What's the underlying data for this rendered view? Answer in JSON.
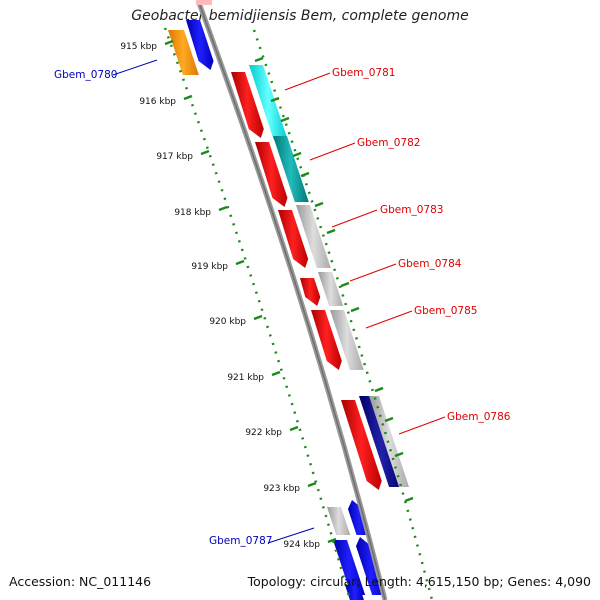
{
  "title": "Geobacter bemidjiensis Bem, complete genome",
  "accession": "Accession: NC_011146",
  "topology": "Topology: circular; Length: 4,615,150 bp; Genes: 4,090",
  "kbp_labels": [
    "915 kbp",
    "916 kbp",
    "917 kbp",
    "918 kbp",
    "919 kbp",
    "920 kbp",
    "921 kbp",
    "922 kbp",
    "923 kbp",
    "924 kbp"
  ],
  "genes": [
    {
      "id": "Gbem_0780",
      "color": "#0000bb"
    },
    {
      "id": "Gbem_0781",
      "color": "#dd0000"
    },
    {
      "id": "Gbem_0782",
      "color": "#dd0000"
    },
    {
      "id": "Gbem_0783",
      "color": "#dd0000"
    },
    {
      "id": "Gbem_0784",
      "color": "#dd0000"
    },
    {
      "id": "Gbem_0785",
      "color": "#dd0000"
    },
    {
      "id": "Gbem_0786",
      "color": "#dd0000"
    },
    {
      "id": "Gbem_0787",
      "color": "#0000bb"
    }
  ],
  "colors": {
    "backbone": "#808080",
    "dots": "#1a8a1a",
    "strand_minus": "#ff0000",
    "strand_plus": "#0000ff",
    "cog_orange": "#ff9900",
    "cog_cyan": "#00ffff",
    "cog_teal": "#009999",
    "cog_gray": "#bbbbbb",
    "cog_navy": "#000080"
  }
}
